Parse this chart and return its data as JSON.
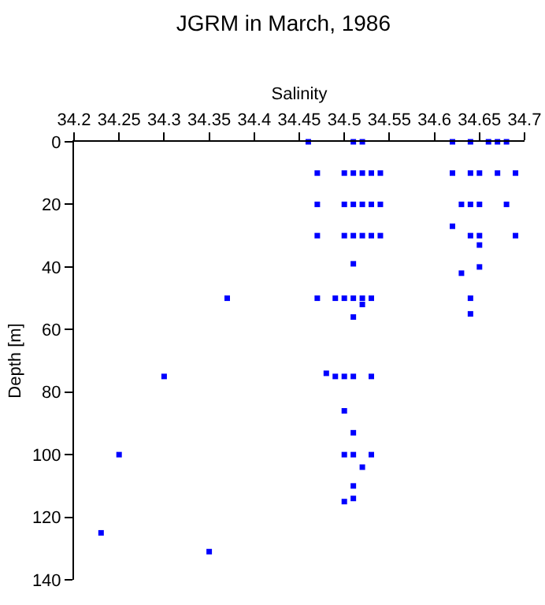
{
  "chart_data": {
    "type": "scatter",
    "title": "JGRM in March, 1986",
    "xlabel": "Salinity",
    "ylabel": "Depth [m]",
    "x": [
      34.46,
      34.51,
      34.52,
      34.62,
      34.64,
      34.66,
      34.67,
      34.68,
      34.47,
      34.5,
      34.51,
      34.52,
      34.53,
      34.54,
      34.62,
      34.64,
      34.65,
      34.67,
      34.69,
      34.47,
      34.5,
      34.51,
      34.52,
      34.53,
      34.54,
      34.63,
      34.64,
      34.65,
      34.68,
      34.62,
      34.47,
      34.5,
      34.51,
      34.52,
      34.53,
      34.54,
      34.64,
      34.65,
      34.69,
      34.65,
      34.51,
      34.65,
      34.63,
      34.37,
      34.47,
      34.49,
      34.5,
      34.51,
      34.52,
      34.53,
      34.64,
      34.52,
      34.64,
      34.51,
      34.48,
      34.3,
      34.49,
      34.5,
      34.51,
      34.53,
      34.5,
      34.51,
      34.25,
      34.5,
      34.51,
      34.53,
      34.52,
      34.51,
      34.51,
      34.5,
      34.23,
      34.35
    ],
    "values": [
      0,
      0,
      0,
      0,
      0,
      0,
      0,
      0,
      10,
      10,
      10,
      10,
      10,
      10,
      10,
      10,
      10,
      10,
      10,
      20,
      20,
      20,
      20,
      20,
      20,
      20,
      20,
      20,
      20,
      27,
      30,
      30,
      30,
      30,
      30,
      30,
      30,
      30,
      30,
      33,
      39,
      40,
      42,
      50,
      50,
      50,
      50,
      50,
      50,
      50,
      50,
      52,
      55,
      56,
      74,
      75,
      75,
      75,
      75,
      75,
      86,
      93,
      100,
      100,
      100,
      100,
      104,
      110,
      114,
      115,
      125,
      131
    ],
    "color": "#0000ff",
    "marker": "square",
    "xlim": [
      34.2,
      34.7
    ],
    "xticks": [
      34.2,
      34.25,
      34.3,
      34.35,
      34.4,
      34.45,
      34.5,
      34.55,
      34.6,
      34.65,
      34.7
    ],
    "ylim": [
      140,
      0
    ],
    "yticks": [
      0,
      20,
      40,
      60,
      80,
      100,
      120,
      140
    ],
    "grid": false
  }
}
